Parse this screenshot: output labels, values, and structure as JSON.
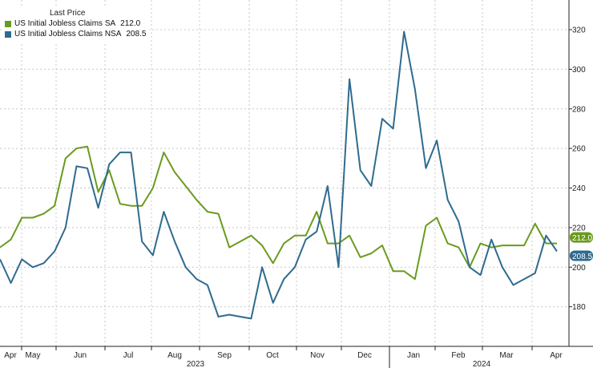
{
  "legend": {
    "title": "Last Price",
    "items": [
      {
        "name": "US Initial Jobless Claims SA",
        "value": "212.0",
        "color": "#6a9b1e"
      },
      {
        "name": "US Initial Jobless Claims NSA",
        "value": "208.5",
        "color": "#2f6b8f"
      }
    ]
  },
  "chart_data": {
    "type": "line",
    "title": "",
    "xlabel": "",
    "ylabel": "",
    "ylim": [
      160,
      335
    ],
    "yticks": [
      180,
      200,
      220,
      240,
      260,
      280,
      300,
      320
    ],
    "grid": true,
    "legend_position": "top-left",
    "x_tick_labels": [
      "Apr",
      "May",
      "Jun",
      "Jul",
      "Aug",
      "Sep",
      "Oct",
      "Nov",
      "Dec",
      "Jan",
      "Feb",
      "Mar",
      "Apr"
    ],
    "year_labels": [
      "2023",
      "2024"
    ],
    "series": [
      {
        "name": "US Initial Jobless Claims SA",
        "color": "#6a9b1e",
        "last_label": "212.0",
        "values": [
          210,
          214,
          225,
          225,
          227,
          231,
          255,
          260,
          261,
          238,
          249,
          232,
          231,
          231,
          240,
          258,
          248,
          241,
          234,
          228,
          227,
          210,
          213,
          216,
          211,
          202,
          212,
          216,
          216,
          228,
          212,
          212,
          216,
          205,
          207,
          211,
          198,
          198,
          194,
          221,
          225,
          212,
          210,
          200,
          212,
          210,
          211,
          211,
          211,
          222,
          212,
          212
        ]
      },
      {
        "name": "US Initial Jobless Claims NSA",
        "color": "#2f6b8f",
        "last_label": "208.5",
        "values": [
          204,
          192,
          204,
          200,
          202,
          208,
          220,
          251,
          250,
          230,
          252,
          258,
          258,
          213,
          206,
          228,
          213,
          200,
          194,
          191,
          175,
          176,
          175,
          174,
          200,
          182,
          194,
          200,
          214,
          218,
          241,
          200,
          295,
          249,
          241,
          275,
          270,
          319,
          290,
          250,
          264,
          234,
          223,
          200,
          196,
          214,
          200,
          191,
          194,
          197,
          216,
          208
        ]
      }
    ]
  }
}
